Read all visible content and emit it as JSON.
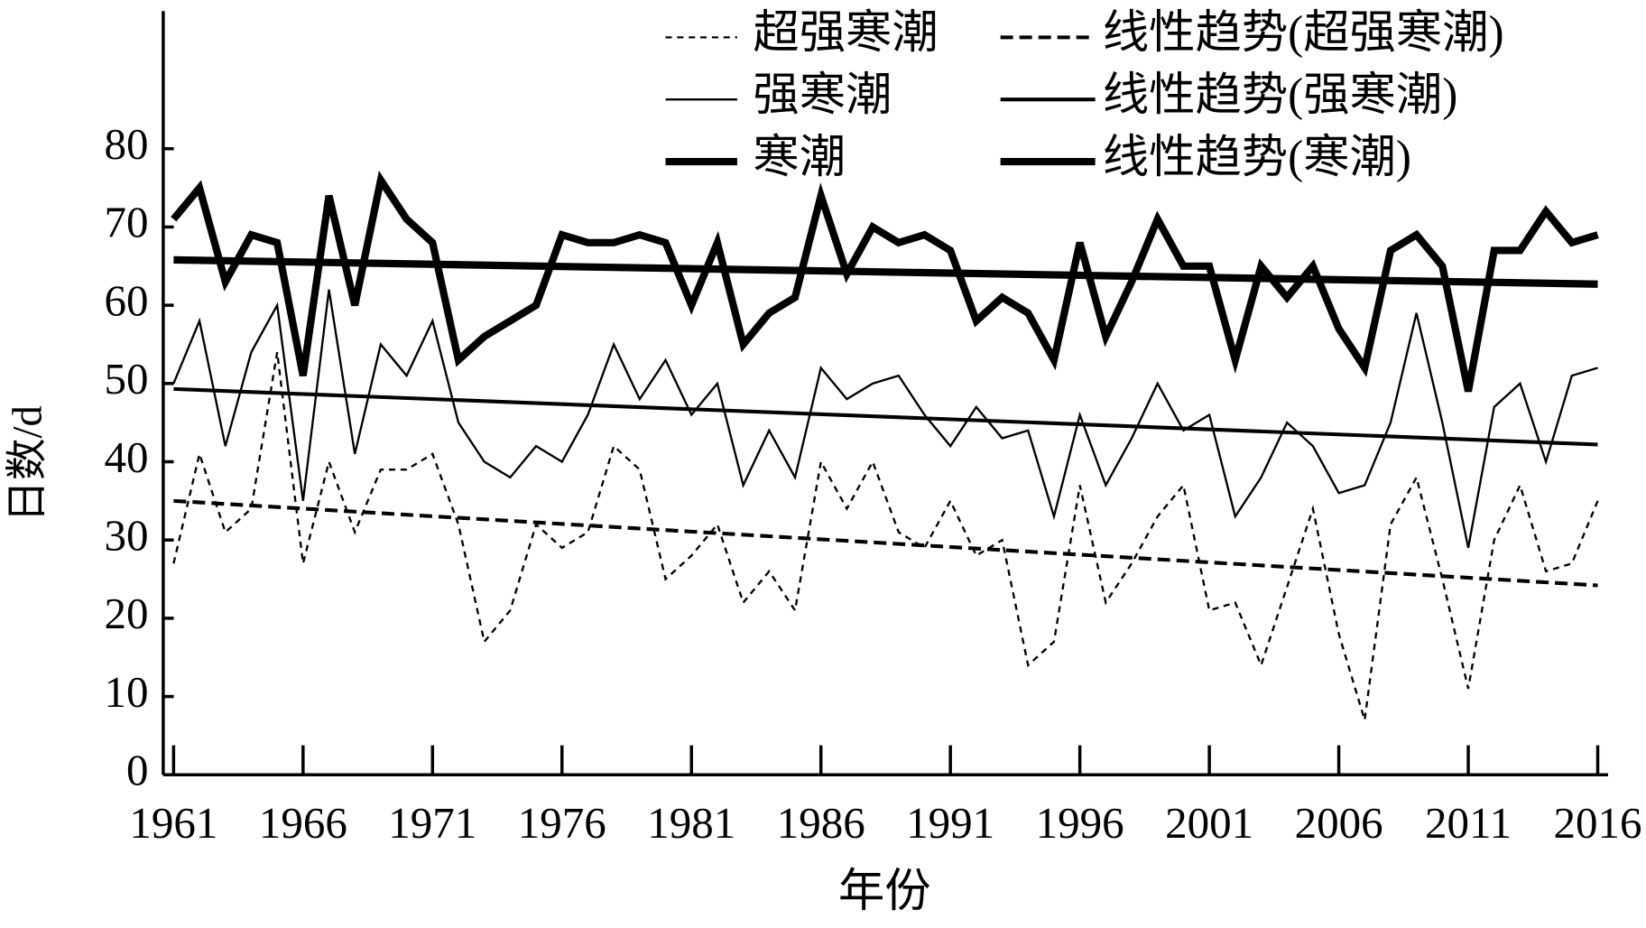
{
  "chart_data": {
    "type": "line",
    "x_label": "年份",
    "y_label": "日数/d",
    "x": [
      1961,
      1962,
      1963,
      1964,
      1965,
      1966,
      1967,
      1968,
      1969,
      1970,
      1971,
      1972,
      1973,
      1974,
      1975,
      1976,
      1977,
      1978,
      1979,
      1980,
      1981,
      1982,
      1983,
      1984,
      1985,
      1986,
      1987,
      1988,
      1989,
      1990,
      1991,
      1992,
      1993,
      1994,
      1995,
      1996,
      1997,
      1998,
      1999,
      2000,
      2001,
      2002,
      2003,
      2004,
      2005,
      2006,
      2007,
      2008,
      2009,
      2010,
      2011,
      2012,
      2013,
      2014,
      2015,
      2016
    ],
    "series": [
      {
        "name": "超强寒潮",
        "color": "#000000",
        "dash": true,
        "weight": "light",
        "values": [
          27,
          41,
          31,
          34,
          54,
          27,
          40,
          31,
          39,
          39,
          41,
          32,
          17,
          21,
          32,
          29,
          31,
          42,
          39,
          25,
          28,
          32,
          22,
          26,
          21,
          40,
          34,
          40,
          31,
          29,
          35,
          28,
          30,
          14,
          17,
          37,
          22,
          27,
          33,
          37,
          21,
          22,
          14,
          24,
          34,
          18,
          7,
          32,
          38,
          25,
          11,
          30,
          37,
          26,
          27,
          35
        ]
      },
      {
        "name": "线性趋势(超强寒潮)",
        "color": "#000000",
        "dash": true,
        "weight": "medium",
        "x": [
          1961,
          2016
        ],
        "values": [
          35,
          24.2
        ]
      },
      {
        "name": "强寒潮",
        "color": "#000000",
        "dash": false,
        "weight": "light",
        "values": [
          50,
          58,
          42,
          54,
          60,
          35,
          62,
          41,
          55,
          51,
          58,
          45,
          40,
          38,
          42,
          40,
          46,
          55,
          48,
          53,
          46,
          50,
          37,
          44,
          38,
          52,
          48,
          50,
          51,
          46,
          42,
          47,
          43,
          44,
          33,
          46,
          37,
          43,
          50,
          44,
          46,
          33,
          38,
          45,
          42,
          36,
          37,
          45,
          59,
          45,
          29,
          47,
          50,
          40,
          51,
          52
        ]
      },
      {
        "name": "线性趋势(强寒潮)",
        "color": "#000000",
        "dash": false,
        "weight": "medium",
        "x": [
          1961,
          2016
        ],
        "values": [
          49.3,
          42.2
        ]
      },
      {
        "name": "寒潮",
        "color": "#000000",
        "dash": false,
        "weight": "heavy",
        "values": [
          71,
          75,
          63,
          69,
          68,
          51,
          74,
          60,
          76,
          71,
          68,
          53,
          56,
          58,
          60,
          69,
          68,
          68,
          69,
          68,
          60,
          68,
          55,
          59,
          61,
          74,
          64,
          70,
          68,
          69,
          67,
          58,
          61,
          59,
          53,
          68,
          56,
          63,
          71,
          65,
          65,
          53,
          65,
          61,
          65,
          57,
          52,
          67,
          69,
          65,
          49,
          67,
          67,
          72,
          68,
          69
        ]
      },
      {
        "name": "线性趋势(寒潮)",
        "color": "#000000",
        "dash": false,
        "weight": "heavy",
        "x": [
          1961,
          2016
        ],
        "values": [
          65.8,
          62.7
        ]
      }
    ],
    "xlim": [
      1960.6,
      2016.4
    ],
    "xticks": [
      1961,
      1966,
      1971,
      1976,
      1981,
      1986,
      1991,
      1996,
      2001,
      2006,
      2011,
      2016
    ],
    "ylim": [
      0,
      97.6
    ],
    "yticks": [
      0,
      10,
      20,
      30,
      40,
      50,
      60,
      70,
      80
    ],
    "grid": false,
    "legend": "top-right"
  }
}
